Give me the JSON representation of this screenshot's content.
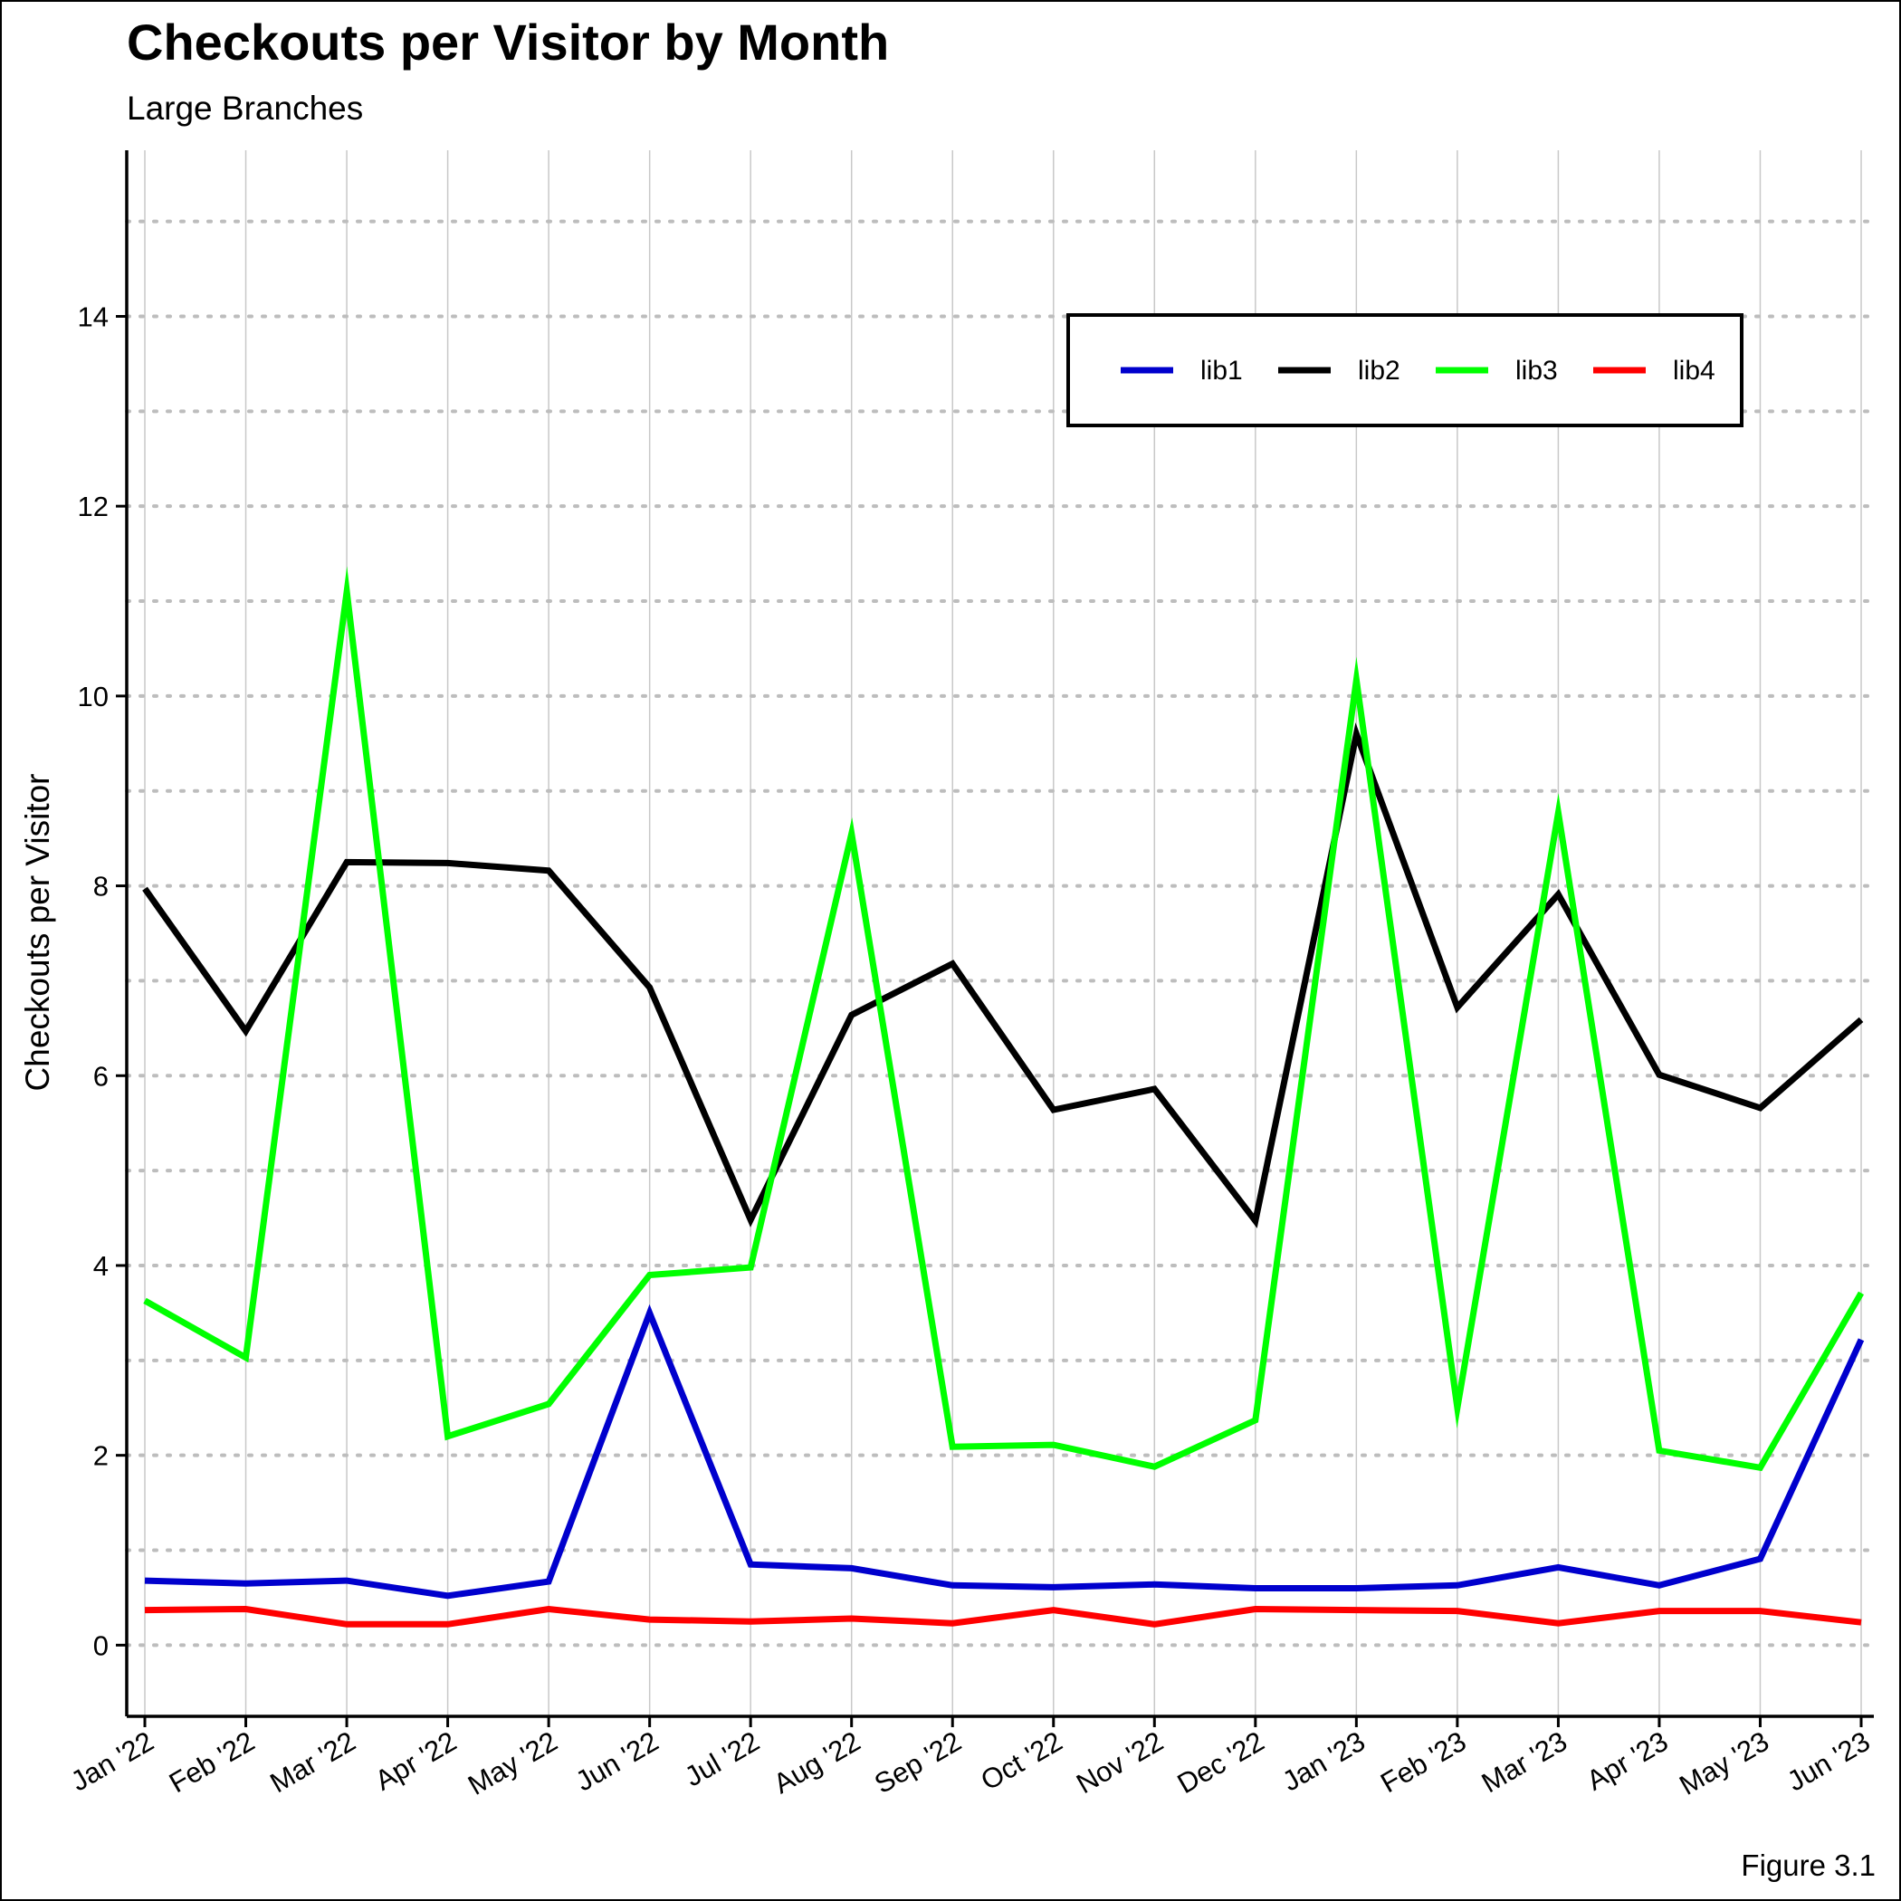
{
  "chart_data": {
    "type": "line",
    "title": "Checkouts per Visitor by Month",
    "subtitle": "Large Branches",
    "xlabel": "",
    "ylabel": "Checkouts per Visitor",
    "caption": "Figure 3.1",
    "categories": [
      "Jan '22",
      "Feb '22",
      "Mar '22",
      "Apr '22",
      "May '22",
      "Jun '22",
      "Jul '22",
      "Aug '22",
      "Sep '22",
      "Oct '22",
      "Nov '22",
      "Dec '22",
      "Jan '23",
      "Feb '23",
      "Mar '23",
      "Apr '23",
      "May '23",
      "Jun '23"
    ],
    "ylim": [
      -0.75,
      15.75
    ],
    "yticks": [
      0,
      2,
      4,
      6,
      8,
      10,
      12,
      14
    ],
    "legend_position": "top-right",
    "series": [
      {
        "name": "lib1",
        "color": "#0000CD",
        "values": [
          0.68,
          0.65,
          0.68,
          0.52,
          0.67,
          3.5,
          0.85,
          0.81,
          0.63,
          0.61,
          0.64,
          0.6,
          0.6,
          0.63,
          0.82,
          0.63,
          0.91,
          3.22
        ]
      },
      {
        "name": "lib2",
        "color": "#000000",
        "values": [
          7.97,
          6.47,
          8.25,
          8.24,
          8.16,
          6.93,
          4.48,
          6.64,
          7.18,
          5.64,
          5.86,
          4.47,
          9.6,
          6.72,
          7.91,
          6.01,
          5.66,
          6.59
        ]
      },
      {
        "name": "lib3",
        "color": "#00FF00",
        "values": [
          3.63,
          3.03,
          11.1,
          2.2,
          2.54,
          3.9,
          3.98,
          8.55,
          2.09,
          2.11,
          1.88,
          2.37,
          10.17,
          2.5,
          8.77,
          2.05,
          1.87,
          3.71
        ]
      },
      {
        "name": "lib4",
        "color": "#FF0000",
        "values": [
          0.37,
          0.38,
          0.22,
          0.22,
          0.38,
          0.27,
          0.25,
          0.28,
          0.23,
          0.37,
          0.22,
          0.38,
          0.37,
          0.36,
          0.23,
          0.36,
          0.36,
          0.24
        ]
      }
    ]
  }
}
